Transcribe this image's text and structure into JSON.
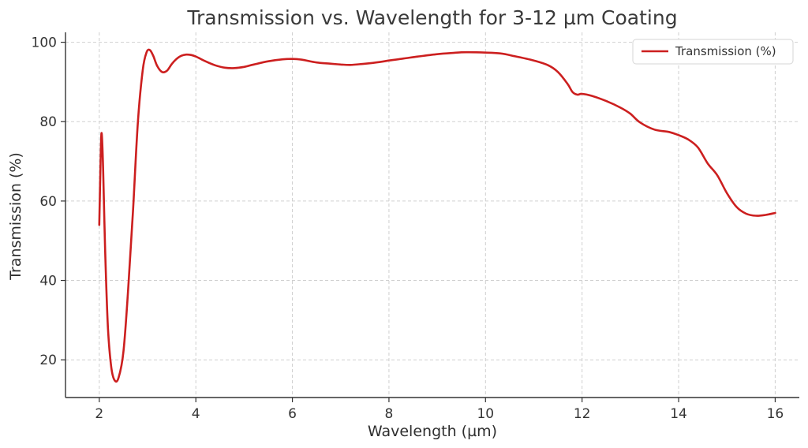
{
  "chart_data": {
    "type": "line",
    "title": "Transmission vs. Wavelength for 3-12 µm Coating",
    "xlabel": "Wavelength (µm)",
    "ylabel": "Transmission (%)",
    "xlim": [
      1.3,
      16.5
    ],
    "ylim": [
      10.5,
      102.5
    ],
    "xticks": [
      2,
      4,
      6,
      8,
      10,
      12,
      14,
      16
    ],
    "yticks": [
      20,
      40,
      60,
      80,
      100
    ],
    "grid": true,
    "legend_position": "top-right",
    "series": [
      {
        "name": "Transmission (%)",
        "color": "#cc1f1f",
        "x": [
          2.0,
          2.03,
          2.05,
          2.08,
          2.12,
          2.18,
          2.25,
          2.32,
          2.4,
          2.5,
          2.6,
          2.7,
          2.8,
          2.9,
          2.98,
          3.05,
          3.12,
          3.2,
          3.3,
          3.4,
          3.5,
          3.6,
          3.7,
          3.8,
          3.9,
          4.0,
          4.2,
          4.4,
          4.6,
          4.8,
          5.0,
          5.2,
          5.5,
          5.8,
          6.0,
          6.2,
          6.5,
          6.8,
          7.0,
          7.2,
          7.5,
          7.8,
          8.0,
          8.3,
          8.6,
          9.0,
          9.3,
          9.6,
          10.0,
          10.3,
          10.6,
          11.0,
          11.3,
          11.5,
          11.7,
          11.8,
          11.9,
          12.0,
          12.2,
          12.5,
          12.8,
          13.0,
          13.2,
          13.5,
          13.8,
          14.0,
          14.2,
          14.4,
          14.6,
          14.8,
          15.0,
          15.2,
          15.4,
          15.6,
          15.8,
          16.0
        ],
        "values": [
          54,
          72,
          77,
          68,
          48,
          28,
          18,
          14.8,
          15.5,
          22,
          38,
          58,
          80,
          93,
          97.5,
          98,
          96.5,
          94,
          92.5,
          92.8,
          94.5,
          95.8,
          96.6,
          96.9,
          96.8,
          96.4,
          95.2,
          94.2,
          93.6,
          93.5,
          93.8,
          94.4,
          95.2,
          95.7,
          95.8,
          95.6,
          94.9,
          94.6,
          94.4,
          94.3,
          94.6,
          95.0,
          95.4,
          95.9,
          96.4,
          97.0,
          97.3,
          97.5,
          97.4,
          97.2,
          96.5,
          95.4,
          94.2,
          92.5,
          89.5,
          87.5,
          86.8,
          87.0,
          86.5,
          85.2,
          83.5,
          82.0,
          79.8,
          78.0,
          77.4,
          76.6,
          75.5,
          73.5,
          69.5,
          66.5,
          62.0,
          58.5,
          56.8,
          56.3,
          56.5,
          57.0
        ]
      }
    ]
  }
}
